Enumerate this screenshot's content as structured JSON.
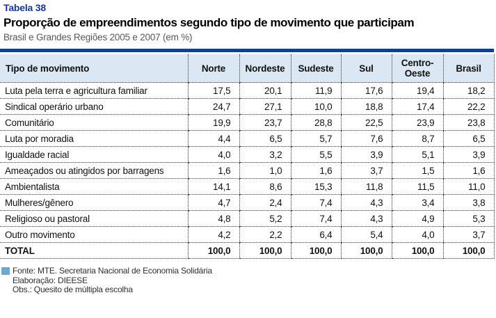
{
  "document": {
    "table_label": "Tabela 38",
    "title": "Proporção de empreendimentos segundo tipo de movimento que participam",
    "subtitle": "Brasil e Grandes Regiões 2005 e 2007 (em %)"
  },
  "table": {
    "columns": [
      "Tipo de movimento",
      "Norte",
      "Nordeste",
      "Sudeste",
      "Sul",
      "Centro-Oeste",
      "Brasil"
    ],
    "rows": [
      {
        "label": "Luta pela terra e agricultura familiar",
        "values": [
          "17,5",
          "20,1",
          "11,9",
          "17,6",
          "19,4",
          "18,2"
        ]
      },
      {
        "label": "Sindical operário urbano",
        "values": [
          "24,7",
          "27,1",
          "10,0",
          "18,8",
          "17,4",
          "22,2"
        ]
      },
      {
        "label": "Comunitário",
        "values": [
          "19,9",
          "23,7",
          "28,8",
          "22,5",
          "23,9",
          "23,8"
        ]
      },
      {
        "label": "Luta por moradia",
        "values": [
          "4,4",
          "6,5",
          "5,7",
          "7,6",
          "8,7",
          "6,5"
        ]
      },
      {
        "label": "Igualdade racial",
        "values": [
          "4,0",
          "3,2",
          "5,5",
          "3,9",
          "5,1",
          "3,9"
        ]
      },
      {
        "label": "Ameaçados ou atingidos por barragens",
        "values": [
          "1,6",
          "1,0",
          "1,6",
          "3,7",
          "1,5",
          "1,6"
        ]
      },
      {
        "label": "Ambientalista",
        "values": [
          "14,1",
          "8,6",
          "15,3",
          "11,8",
          "11,5",
          "11,0"
        ]
      },
      {
        "label": "Mulheres/gênero",
        "values": [
          "4,7",
          "2,4",
          "7,4",
          "4,3",
          "3,4",
          "3,8"
        ]
      },
      {
        "label": "Religioso ou pastoral",
        "values": [
          "4,8",
          "5,2",
          "7,4",
          "4,3",
          "4,9",
          "5,3"
        ]
      },
      {
        "label": "Outro movimento",
        "values": [
          "4,2",
          "2,2",
          "6,4",
          "5,4",
          "4,0",
          "3,7"
        ]
      }
    ],
    "total_row": {
      "label": "TOTAL",
      "values": [
        "100,0",
        "100,0",
        "100,0",
        "100,0",
        "100,0",
        "100,0"
      ]
    }
  },
  "footnotes": {
    "source": "Fonte: MTE. Secretaria Nacional de Economia Solidária",
    "elaboration": "Elaboração: DIEESE",
    "note": "Obs.: Quesito de múltipla escolha"
  },
  "colors": {
    "accent_bar_blue": "#0c3da2",
    "table_label_blue": "#16379e",
    "header_row_bg": "#dbe8f3",
    "source_square_blue": "#6fa8ce"
  }
}
